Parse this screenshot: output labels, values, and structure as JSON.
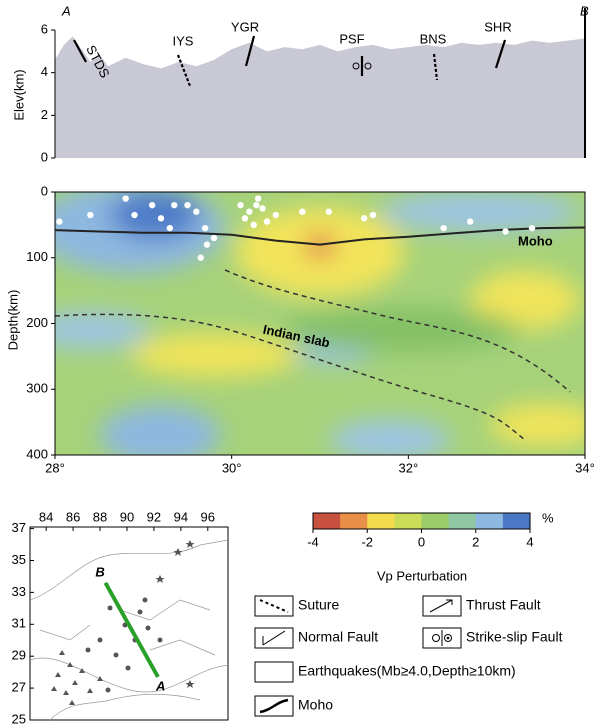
{
  "chart_data": [
    {
      "type": "area",
      "end_labels": [
        "A",
        "B"
      ],
      "fault_labels": [
        "STDS",
        "IYS",
        "YGR",
        "PSF",
        "BNS",
        "SHR"
      ],
      "ylabel": "Elev(km)",
      "color": "#c9c9d6",
      "x": [
        28.0,
        28.1,
        28.2,
        28.4,
        28.5,
        28.6,
        28.8,
        29.0,
        29.2,
        29.4,
        29.6,
        29.8,
        30.0,
        30.2,
        30.4,
        30.6,
        30.8,
        31.0,
        31.2,
        31.4,
        31.6,
        31.8,
        32.0,
        32.2,
        32.4,
        32.6,
        32.8,
        33.0,
        33.2,
        33.4,
        33.6,
        33.8,
        34.0
      ],
      "values": [
        4.6,
        5.3,
        5.7,
        4.5,
        4.9,
        4.3,
        4.7,
        4.4,
        4.2,
        4.5,
        4.3,
        4.6,
        5.1,
        5.4,
        5.0,
        5.2,
        5.1,
        5.3,
        5.0,
        5.2,
        5.3,
        5.1,
        5.2,
        5.3,
        5.2,
        5.4,
        5.3,
        5.4,
        5.3,
        5.5,
        5.4,
        5.5,
        5.6
      ],
      "xlim": [
        28,
        34
      ],
      "ylim": [
        0,
        6
      ],
      "yticks": [
        0,
        2,
        4,
        6
      ]
    },
    {
      "type": "section",
      "ylabel": "Depth(km)",
      "annotations": [
        "Moho",
        "Indian slab"
      ],
      "xlim": [
        28,
        34
      ],
      "xticks": [
        {
          "value": 28,
          "label": "28°"
        },
        {
          "value": 30,
          "label": "30°"
        },
        {
          "value": 32,
          "label": "32°"
        },
        {
          "value": 34,
          "label": "34°"
        }
      ],
      "ylim": [
        400,
        0
      ],
      "yticks": [
        0,
        100,
        200,
        300,
        400
      ],
      "moho": {
        "x": [
          28.0,
          28.5,
          29.0,
          29.5,
          30.0,
          30.5,
          31.0,
          31.5,
          32.0,
          32.5,
          33.0,
          33.5,
          34.0
        ],
        "values": [
          58,
          60,
          62,
          62,
          65,
          74,
          80,
          72,
          68,
          63,
          58,
          55,
          54
        ]
      },
      "quakes": {
        "x": [
          28.05,
          28.4,
          28.8,
          28.9,
          29.1,
          29.2,
          29.3,
          29.35,
          29.5,
          29.6,
          29.7,
          29.65,
          29.8,
          29.72,
          30.1,
          30.15,
          30.2,
          30.3,
          30.25,
          30.35,
          30.4,
          30.5,
          30.8,
          30.28,
          31.1,
          31.5,
          31.6,
          32.4,
          32.7,
          33.1,
          33.4
        ],
        "values": [
          45,
          35,
          10,
          35,
          20,
          40,
          55,
          20,
          20,
          30,
          55,
          100,
          70,
          80,
          20,
          40,
          30,
          10,
          50,
          25,
          45,
          35,
          30,
          20,
          30,
          40,
          35,
          55,
          45,
          60,
          55
        ]
      }
    },
    {
      "type": "colorbar",
      "unit": "%",
      "title": "Vp  Perturbation",
      "xlim": [
        -4,
        4
      ],
      "xticks": [
        -4,
        -2,
        0,
        2,
        4
      ],
      "colors": [
        "#c8503e",
        "#e8904a",
        "#f4dc4e",
        "#cadc58",
        "#9ccc6a",
        "#90c8a4",
        "#8cb8e2",
        "#4a78c6"
      ]
    },
    {
      "type": "map",
      "xlim": [
        82.8,
        97.5
      ],
      "ylim": [
        25,
        37.1
      ],
      "xticks": [
        84,
        86,
        88,
        90,
        92,
        94,
        96
      ],
      "yticks": [
        25,
        27,
        29,
        31,
        33,
        35,
        37
      ],
      "profile_labels": [
        "A",
        "B"
      ],
      "profile": {
        "x": [
          92.3,
          88.4
        ],
        "values": [
          27.7,
          33.6
        ]
      },
      "color": "#2aa02a"
    }
  ],
  "legend": [
    "Suture",
    "Thrust Fault",
    "Normal Fault",
    "Strike-slip Fault",
    "Earthquakes(Mb≥4.0,Depth≥10km)",
    "Moho"
  ]
}
